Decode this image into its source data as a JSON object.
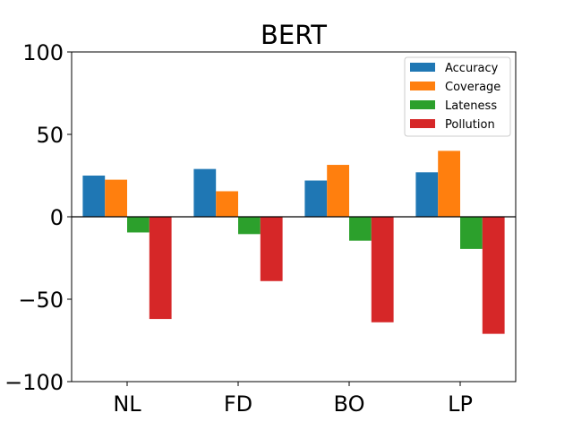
{
  "chart_data": {
    "type": "bar",
    "title": "BERT",
    "xlabel": "",
    "ylabel": "",
    "categories": [
      "NL",
      "FD",
      "BO",
      "LP"
    ],
    "ylim": [
      -100,
      100
    ],
    "yticks": [
      -100,
      -50,
      0,
      50,
      100
    ],
    "grid": false,
    "legend_position": "top-right",
    "series": [
      {
        "name": "Accuracy",
        "color": "#1f77b4",
        "values": [
          25,
          29,
          22,
          27
        ]
      },
      {
        "name": "Coverage",
        "color": "#ff7f0e",
        "values": [
          22.5,
          15.5,
          31.5,
          40
        ]
      },
      {
        "name": "Lateness",
        "color": "#2ca02c",
        "values": [
          -9.5,
          -10.5,
          -14.5,
          -19.5
        ]
      },
      {
        "name": "Pollution",
        "color": "#d62728",
        "values": [
          -62,
          -39,
          -64,
          -71
        ]
      }
    ]
  }
}
